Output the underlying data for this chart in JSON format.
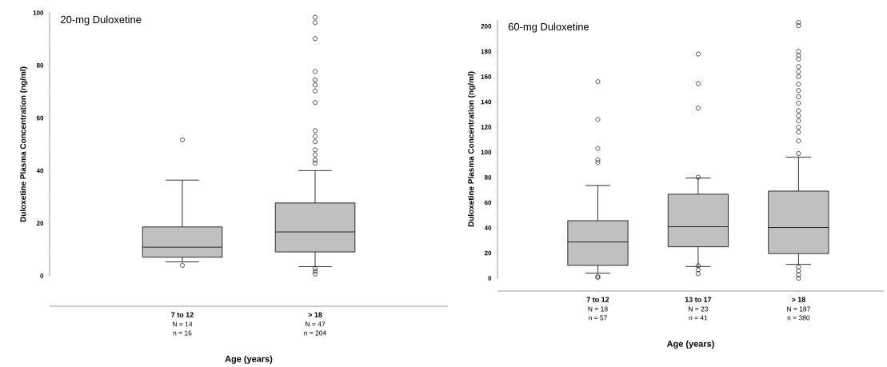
{
  "chart_data": [
    {
      "type": "box",
      "title": "20-mg Duloxetine",
      "xlabel": "Age (years)",
      "ylabel": "Duloxetine Plasma Concentration (ng/ml)",
      "categories": [
        "7 to 12",
        "> 18"
      ],
      "annotations": [
        "N = 14",
        "n = 16",
        "N = 47",
        "n = 204"
      ],
      "ylim": [
        0,
        100
      ],
      "yticks": [
        0,
        20,
        40,
        60,
        80,
        100
      ],
      "marker": "circle",
      "series": [
        {
          "color": "#c0c0c0",
          "boxes": [
            {
              "low": 5.3,
              "q1": 7.1,
              "median": 10.9,
              "q3": 18.6,
              "high": 36.4,
              "outliers": [
                51.7,
                4.0
              ]
            },
            {
              "low": 3.5,
              "q1": 9.1,
              "median": 16.7,
              "q3": 27.7,
              "high": 40.0,
              "outliers": [
                98.3,
                96.3,
                90.2,
                77.7,
                74.5,
                72.6,
                70.3,
                65.9,
                55.2,
                53,
                51,
                47.9,
                46,
                44,
                42.8,
                2.7,
                1.7,
                0.7
              ]
            }
          ]
        }
      ]
    },
    {
      "type": "box",
      "title": "60-mg Duloxetine",
      "xlabel": "Age (years)",
      "ylabel": "Duloxetine Plasma Concentration (ng/ml)",
      "categories": [
        "7 to 12",
        "13 to 17",
        "> 18"
      ],
      "annotations": [
        "N = 18",
        "n = 57",
        "N = 23",
        "n = 41",
        "N = 187",
        "n = 380"
      ],
      "ylim": [
        0,
        205
      ],
      "yticks": [
        0,
        20,
        40,
        60,
        80,
        100,
        120,
        140,
        160,
        180,
        200
      ],
      "marker": "circle",
      "series": [
        {
          "color": "#c0c0c0",
          "boxes": [
            {
              "low": 4.0,
              "q1": 10.2,
              "median": 28.8,
              "q3": 45.7,
              "high": 73.6,
              "outliers": [
                156,
                126,
                103,
                94,
                92,
                1.5,
                0.5
              ]
            },
            {
              "low": 9.3,
              "q1": 25.0,
              "median": 40.9,
              "q3": 66.7,
              "high": 79.5,
              "outliers": [
                178,
                154.5,
                135,
                80.2,
                9.9,
                6.8,
                3.7
              ]
            },
            {
              "low": 11.0,
              "q1": 19.6,
              "median": 40.3,
              "q3": 69.2,
              "high": 96.1,
              "outliers": [
                203,
                200.5,
                180,
                177,
                174,
                168,
                164,
                160,
                154,
                149,
                144,
                139,
                133,
                129,
                125,
                120,
                116,
                109,
                99,
                8.9,
                5.8,
                2.7,
                0
              ]
            }
          ]
        }
      ]
    }
  ]
}
